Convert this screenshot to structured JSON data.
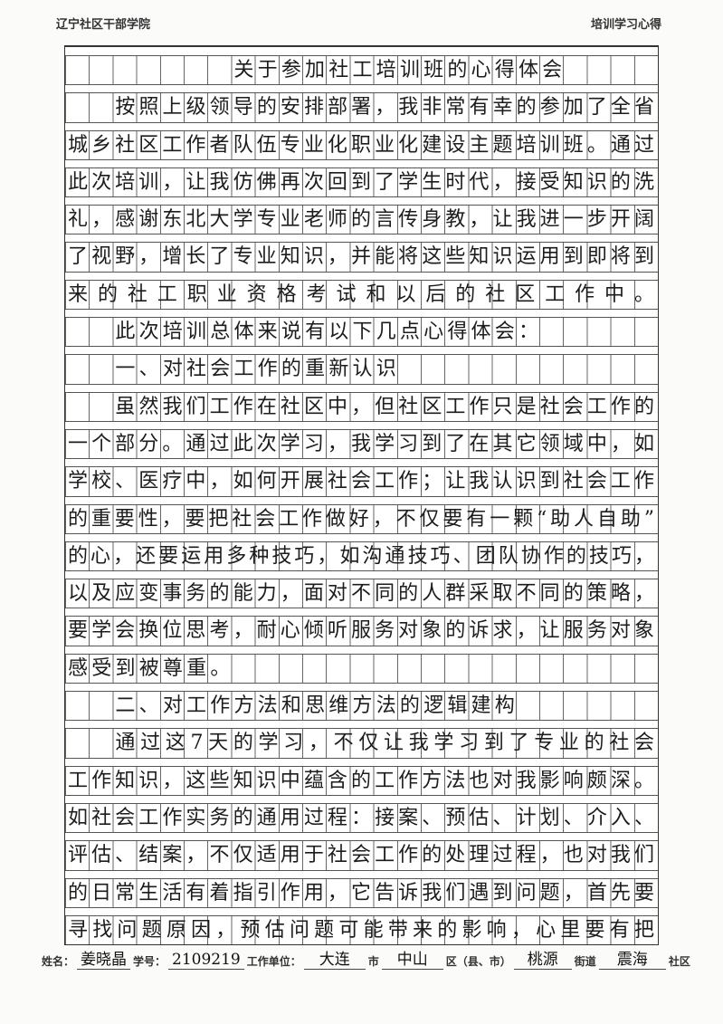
{
  "header": {
    "left": "辽宁社区干部学院",
    "right": "培训学习心得"
  },
  "lines": [
    {
      "indent": 7,
      "text": "关于参加社工培训班的心得体会"
    },
    {
      "indent": 2,
      "text": "按照上级领导的安排部署，我非常有幸的参加了全省"
    },
    {
      "indent": 0,
      "text": "城乡社区工作者队伍专业化职业化建设主题培训班。通过"
    },
    {
      "indent": 0,
      "text": "此次培训，让我仿佛再次回到了学生时代，接受知识的洗"
    },
    {
      "indent": 0,
      "text": "礼，感谢东北大学专业老师的言传身教，让我进一步开阔"
    },
    {
      "indent": 0,
      "text": "了视野，增长了专业知识，并能将这些知识运用到即将到"
    },
    {
      "indent": 0,
      "text": "来的社工职业资格考试和以后的社区工作中。"
    },
    {
      "indent": 2,
      "text": "此次培训总体来说有以下几点心得体会："
    },
    {
      "indent": 2,
      "text": "一、对社会工作的重新认识"
    },
    {
      "indent": 2,
      "text": "虽然我们工作在社区中，但社区工作只是社会工作的"
    },
    {
      "indent": 0,
      "text": "一个部分。通过此次学习，我学习到了在其它领域中，如"
    },
    {
      "indent": 0,
      "text": "学校、医疗中，如何开展社会工作；让我认识到社会工作"
    },
    {
      "indent": 0,
      "text": "的重要性，要把社会工作做好，不仅要有一颗“助人自助”"
    },
    {
      "indent": 0,
      "text": "的心，还要运用多种技巧，如沟通技巧、团队协作的技巧，"
    },
    {
      "indent": 0,
      "text": "以及应变事务的能力，面对不同的人群采取不同的策略，"
    },
    {
      "indent": 0,
      "text": "要学会换位思考，耐心倾听服务对象的诉求，让服务对象"
    },
    {
      "indent": 0,
      "text": "感受到被尊重。"
    },
    {
      "indent": 2,
      "text": "二、对工作方法和思维方法的逻辑建构"
    },
    {
      "indent": 2,
      "text": "通过这7天的学习，不仅让我学习到了专业的社会"
    },
    {
      "indent": 0,
      "text": "工作知识，这些知识中蕴含的工作方法也对我影响颇深。"
    },
    {
      "indent": 0,
      "text": "如社会工作实务的通用过程：接案、预估、计划、介入、"
    },
    {
      "indent": 0,
      "text": "评估、结案，不仅适用于社会工作的处理过程，也对我们"
    },
    {
      "indent": 0,
      "text": "的日常生活有着指引作用，它告诉我们遇到问题，首先要"
    },
    {
      "indent": 0,
      "text": "寻找问题原因，预估问题可能带来的影响，心里要有把"
    }
  ],
  "footer": {
    "name_label": "姓名：",
    "name": "姜晓晶",
    "id_label": "学号：",
    "id": "2109219",
    "unit_label": "工作单位：",
    "city": "大连",
    "city_suffix": "市",
    "district": "中山",
    "district_suffix": "区（县、市）",
    "street": "桃源",
    "street_suffix": "街道",
    "community": "震海",
    "community_suffix": "社区"
  }
}
